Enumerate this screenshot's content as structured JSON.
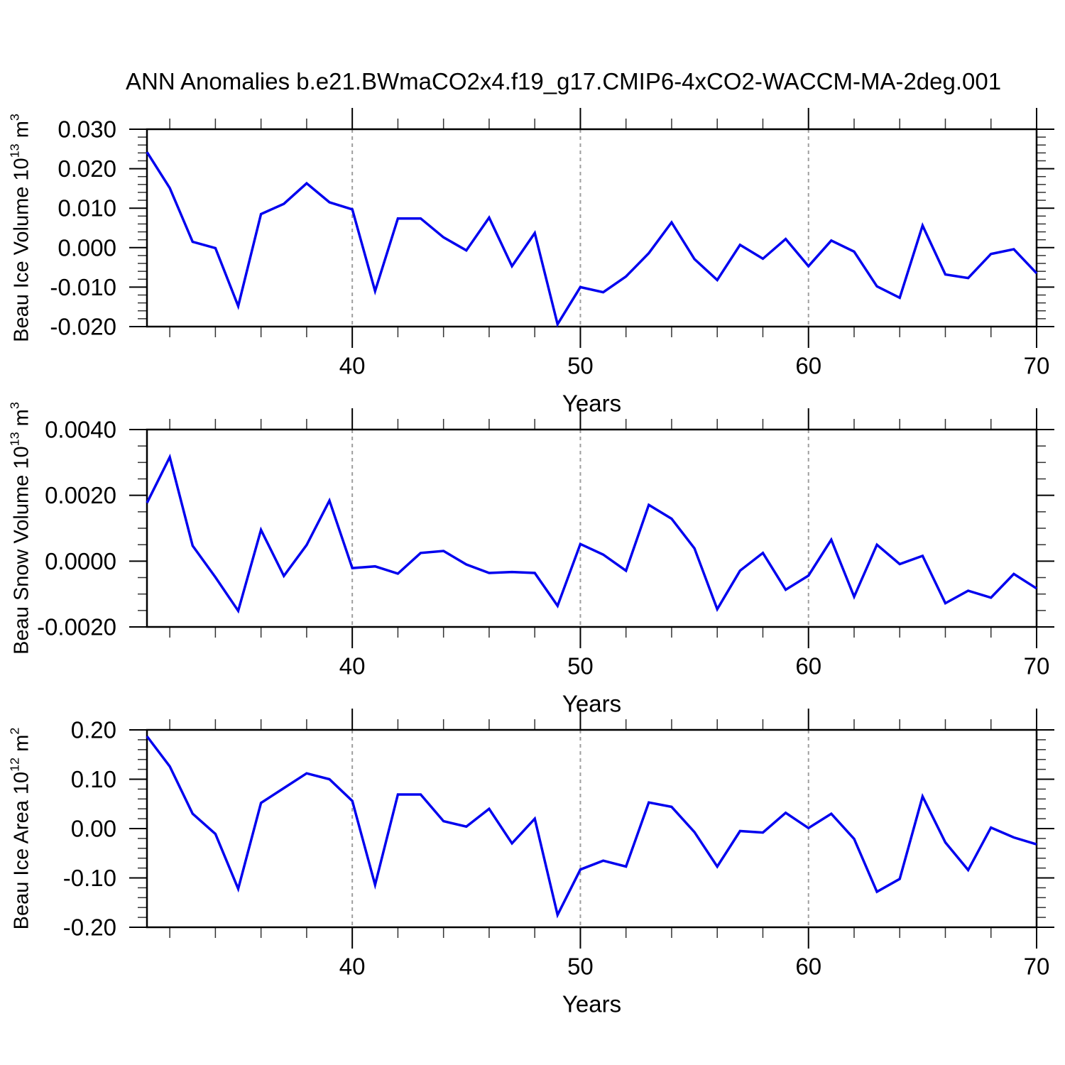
{
  "title": "ANN Anomalies b.e21.BWmaCO2x4.f19_g17.CMIP6-4xCO2-WACCM-MA-2deg.001",
  "colors": {
    "line": "#0000ee",
    "grid": "#9e9e9e",
    "axis": "#000000",
    "minor_tick": "#333333",
    "text": "#000000"
  },
  "x_axis": {
    "label": "Years",
    "range": [
      31,
      70
    ],
    "major_ticks": [
      40,
      50,
      60,
      70
    ],
    "minor_tick_step": 2,
    "gridline_years": [
      40,
      50,
      60
    ]
  },
  "chart_data": [
    {
      "type": "line",
      "name": "beau-ice-volume",
      "ylabel": {
        "pre": "Beau Ice Volume 10",
        "exp": "13",
        "unit": " m",
        "unit_exp": "3"
      },
      "ylabel_text": "Beau Ice Volume 10^13 m^3",
      "xlabel": "Years",
      "ylim": [
        -0.02,
        0.03
      ],
      "y_major_ticks": [
        0.03,
        0.02,
        0.01,
        0.0,
        -0.01,
        -0.02
      ],
      "y_tick_labels": [
        "0.030",
        "0.020",
        "0.010",
        "0.000",
        "-0.010",
        "-0.020"
      ],
      "y_minor_step": 0.002,
      "x_major_ticks": [
        40,
        50,
        60,
        70
      ],
      "x_tick_labels": [
        "40",
        "50",
        "60",
        "70"
      ],
      "x": [
        31,
        32,
        33,
        34,
        35,
        36,
        37,
        38,
        39,
        40,
        41,
        42,
        43,
        44,
        45,
        46,
        47,
        48,
        49,
        50,
        51,
        52,
        53,
        54,
        55,
        56,
        57,
        58,
        59,
        60,
        61,
        62,
        63,
        64,
        65,
        66,
        67,
        68,
        69,
        70
      ],
      "values": [
        0.0242,
        0.0151,
        0.0015,
        -0.0001,
        -0.0148,
        0.0085,
        0.0111,
        0.0163,
        0.0115,
        0.0097,
        -0.011,
        0.0074,
        0.0074,
        0.0026,
        -0.0007,
        0.0076,
        -0.0047,
        0.0037,
        -0.0194,
        -0.01,
        -0.0113,
        -0.0073,
        -0.0014,
        0.0064,
        -0.0029,
        -0.0082,
        0.0007,
        -0.0028,
        0.0022,
        -0.0047,
        0.0018,
        -0.001,
        -0.0098,
        -0.0127,
        0.0056,
        -0.0068,
        -0.0077,
        -0.0016,
        -0.0004,
        -0.0065
      ]
    },
    {
      "type": "line",
      "name": "beau-snow-volume",
      "ylabel": {
        "pre": "Beau Snow Volume 10",
        "exp": "13",
        "unit": " m",
        "unit_exp": "3"
      },
      "ylabel_text": "Beau Snow Volume 10^13 m^3",
      "xlabel": "Years",
      "ylim": [
        -0.002,
        0.004
      ],
      "y_major_ticks": [
        0.004,
        0.002,
        0.0,
        -0.002
      ],
      "y_tick_labels": [
        "0.0040",
        "0.0020",
        "0.0000",
        "-0.0020"
      ],
      "y_minor_step": 0.0005,
      "x_major_ticks": [
        40,
        50,
        60,
        70
      ],
      "x_tick_labels": [
        "40",
        "50",
        "60",
        "70"
      ],
      "x": [
        31,
        32,
        33,
        34,
        35,
        36,
        37,
        38,
        39,
        40,
        41,
        42,
        43,
        44,
        45,
        46,
        47,
        48,
        49,
        50,
        51,
        52,
        53,
        54,
        55,
        56,
        57,
        58,
        59,
        60,
        61,
        62,
        63,
        64,
        65,
        66,
        67,
        68,
        69,
        70
      ],
      "values": [
        0.00177,
        0.00316,
        0.00047,
        -0.00049,
        -0.00151,
        0.00095,
        -0.00045,
        0.00049,
        0.00184,
        -0.00021,
        -0.00016,
        -0.00038,
        0.00025,
        0.00031,
        -0.0001,
        -0.00036,
        -0.00033,
        -0.00036,
        -0.00136,
        0.00052,
        0.0002,
        -0.00029,
        0.00171,
        0.00129,
        0.00039,
        -0.00146,
        -0.00029,
        0.00025,
        -0.00087,
        -0.00044,
        0.00065,
        -0.00108,
        0.0005,
        -9e-05,
        0.00016,
        -0.00128,
        -0.0009,
        -0.00111,
        -0.00039,
        -0.00083
      ]
    },
    {
      "type": "line",
      "name": "beau-ice-area",
      "ylabel": {
        "pre": "Beau Ice Area 10",
        "exp": "12",
        "unit": " m",
        "unit_exp": "2"
      },
      "ylabel_text": "Beau Ice Area 10^12 m^2",
      "xlabel": "Years",
      "ylim": [
        -0.2,
        0.2
      ],
      "y_major_ticks": [
        0.2,
        0.1,
        0.0,
        -0.1,
        -0.2
      ],
      "y_tick_labels": [
        "0.20",
        "0.10",
        "0.00",
        "-0.10",
        "-0.20"
      ],
      "y_minor_step": 0.02,
      "x_major_ticks": [
        40,
        50,
        60,
        70
      ],
      "x_tick_labels": [
        "40",
        "50",
        "60",
        "70"
      ],
      "x": [
        31,
        32,
        33,
        34,
        35,
        36,
        37,
        38,
        39,
        40,
        41,
        42,
        43,
        44,
        45,
        46,
        47,
        48,
        49,
        50,
        51,
        52,
        53,
        54,
        55,
        56,
        57,
        58,
        59,
        60,
        61,
        62,
        63,
        64,
        65,
        66,
        67,
        68,
        69,
        70
      ],
      "values": [
        0.187,
        0.126,
        0.03,
        -0.011,
        -0.122,
        0.052,
        0.082,
        0.112,
        0.1,
        0.056,
        -0.114,
        0.069,
        0.069,
        0.015,
        0.004,
        0.04,
        -0.03,
        0.02,
        -0.175,
        -0.083,
        -0.065,
        -0.077,
        0.053,
        0.044,
        -0.007,
        -0.077,
        -0.005,
        -0.008,
        0.032,
        0.001,
        0.03,
        -0.021,
        -0.128,
        -0.102,
        0.065,
        -0.028,
        -0.084,
        0.002,
        -0.018,
        -0.032
      ]
    }
  ]
}
